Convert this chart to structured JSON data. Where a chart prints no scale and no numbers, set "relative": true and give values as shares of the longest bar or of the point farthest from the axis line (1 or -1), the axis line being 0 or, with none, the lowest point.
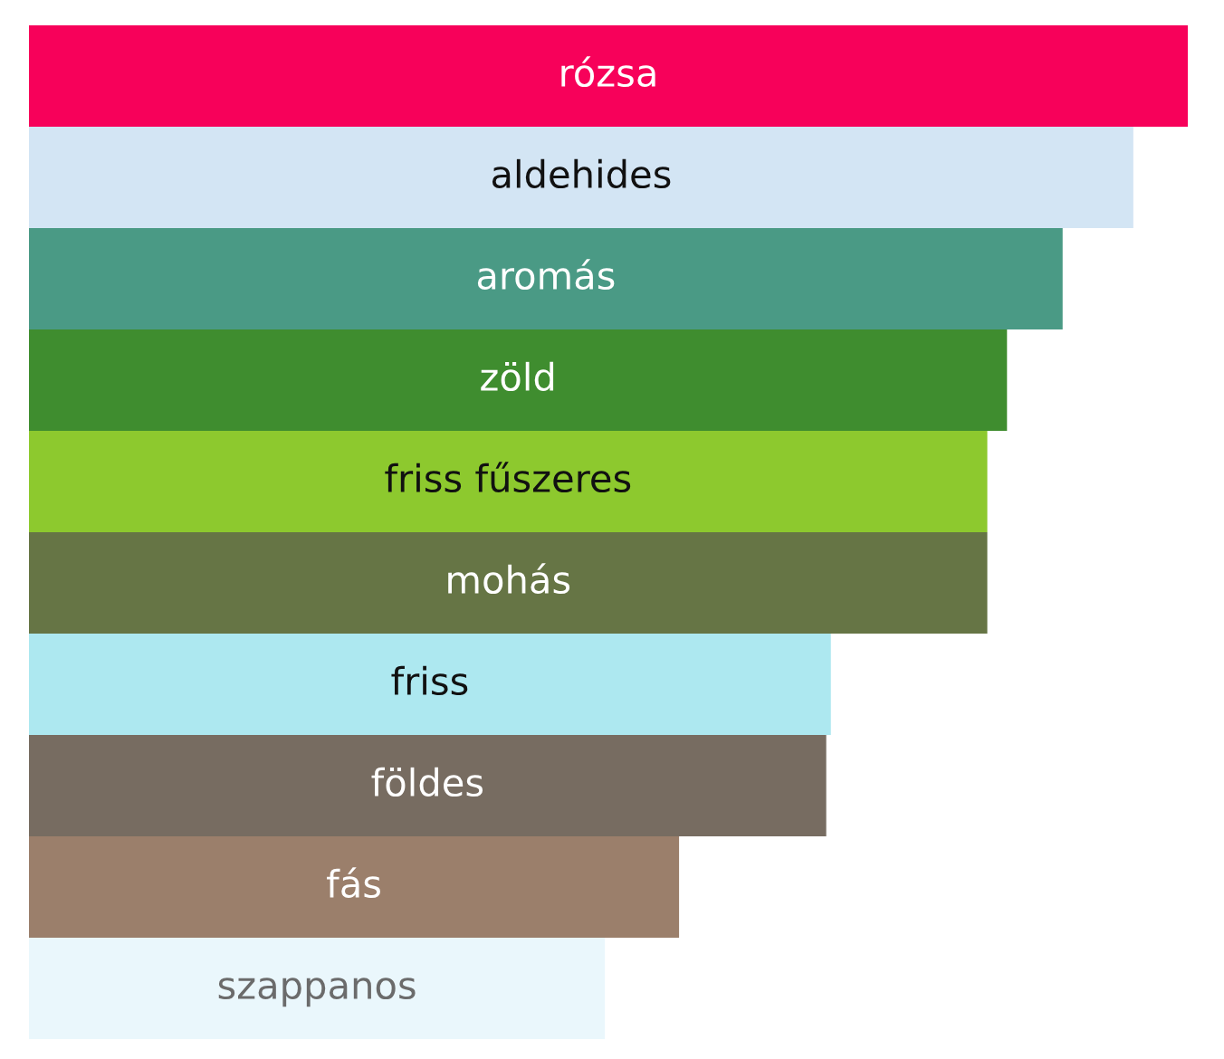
{
  "chart_data": {
    "type": "bar",
    "orientation": "horizontal",
    "relative": true,
    "categories": [
      "rózsa",
      "aldehides",
      "aromás",
      "zöld",
      "friss fűszeres",
      "mohás",
      "friss",
      "földes",
      "fás",
      "szappanos"
    ],
    "values": [
      1,
      0.953,
      0.892,
      0.844,
      0.827,
      0.827,
      0.692,
      0.688,
      0.561,
      0.497
    ],
    "colors": [
      "#f7015a",
      "#d3e5f4",
      "#4a9a85",
      "#3f8d2f",
      "#8dc92e",
      "#667545",
      "#ade8f0",
      "#776c61",
      "#9b7f6b",
      "#eaf7fc"
    ]
  }
}
